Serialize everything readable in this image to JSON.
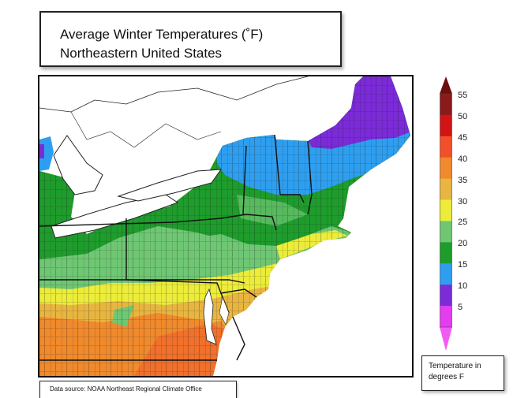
{
  "title": {
    "line1": "Average Winter Temperatures (˚F)",
    "line2": "Northeastern United States"
  },
  "source": "Data source: NOAA Northeast Regional Climate Office",
  "legend": {
    "unit_label_line1": "Temperature in",
    "unit_label_line2": "degrees F",
    "ticks": [
      "55",
      "50",
      "45",
      "40",
      "35",
      "30",
      "25",
      "20",
      "15",
      "10",
      "5"
    ],
    "colors": {
      "55": "#8b1a1a",
      "50": "#d11414",
      "45": "#f2502a",
      "40": "#f08a2c",
      "35": "#e8b640",
      "30": "#ecec3a",
      "25": "#6fc774",
      "20": "#1e9c2c",
      "15": "#2e9ff0",
      "10": "#7c2bd8",
      "5": "#e43df0"
    }
  },
  "colors": {
    "water": "#ffffff",
    "border": "#111111",
    "county_lines": "#1a1a1a"
  }
}
